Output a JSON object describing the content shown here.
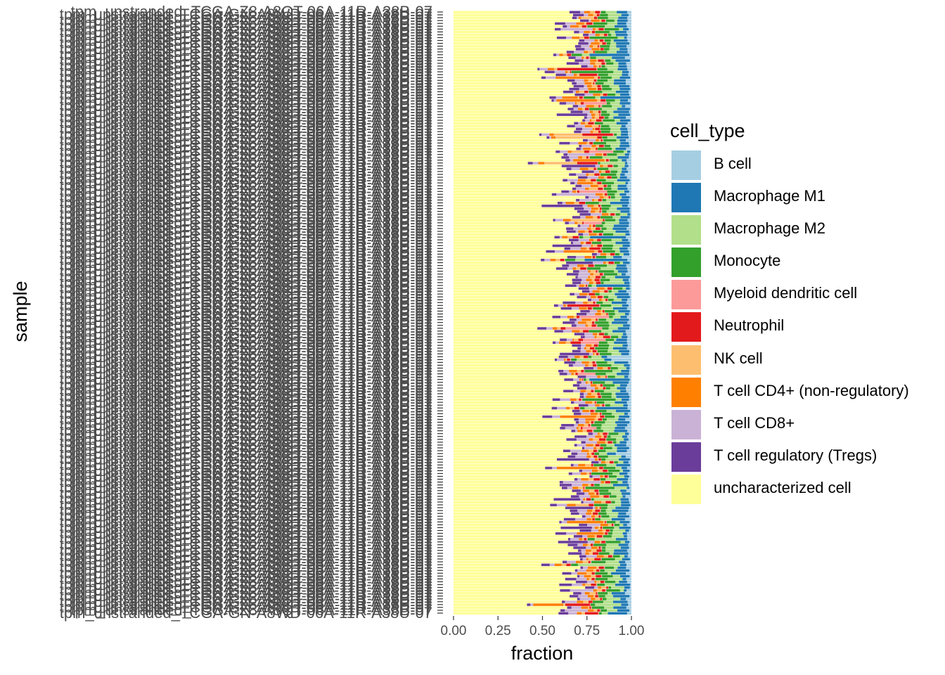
{
  "chart_data": {
    "type": "bar",
    "orientation": "horizontal",
    "stacked": true,
    "xlabel": "fraction",
    "ylabel": "sample",
    "xlim": [
      0,
      1
    ],
    "x_ticks": [
      "0.00",
      "0.25",
      "0.50",
      "0.75",
      "1.00"
    ],
    "y_tick_labels_visible": [
      "tpm_unstranded_TCGA-Z8-A8QT-06A-11R-A38B-07",
      "tpm_unstranded_TCGA-GN-A8WD-06A-11R-A38U-07"
    ],
    "n_samples": 212,
    "legend_title": "cell_type",
    "legend_position": "right",
    "grid": false,
    "series": [
      {
        "name": "B cell",
        "color": "#A6CEE3",
        "mean_fraction": 0.02
      },
      {
        "name": "Macrophage M1",
        "color": "#1F78B4",
        "mean_fraction": 0.05
      },
      {
        "name": "Macrophage M2",
        "color": "#B2DF8A",
        "mean_fraction": 0.05
      },
      {
        "name": "Monocyte",
        "color": "#33A02C",
        "mean_fraction": 0.05
      },
      {
        "name": "Myeloid dendritic cell",
        "color": "#FB9A99",
        "mean_fraction": 0.005
      },
      {
        "name": "Neutrophil",
        "color": "#E31A1C",
        "mean_fraction": 0.02
      },
      {
        "name": "NK cell",
        "color": "#FDBF6F",
        "mean_fraction": 0.02
      },
      {
        "name": "T cell CD4+ (non-regulatory)",
        "color": "#FF7F00",
        "mean_fraction": 0.03
      },
      {
        "name": "T cell CD8+",
        "color": "#CAB2D6",
        "mean_fraction": 0.04
      },
      {
        "name": "T cell regulatory (Tregs)",
        "color": "#6A3D9A",
        "mean_fraction": 0.04
      },
      {
        "name": "uncharacterized cell",
        "color": "#FFFF99",
        "mean_fraction": 0.65
      }
    ],
    "note_visible": ""
  }
}
